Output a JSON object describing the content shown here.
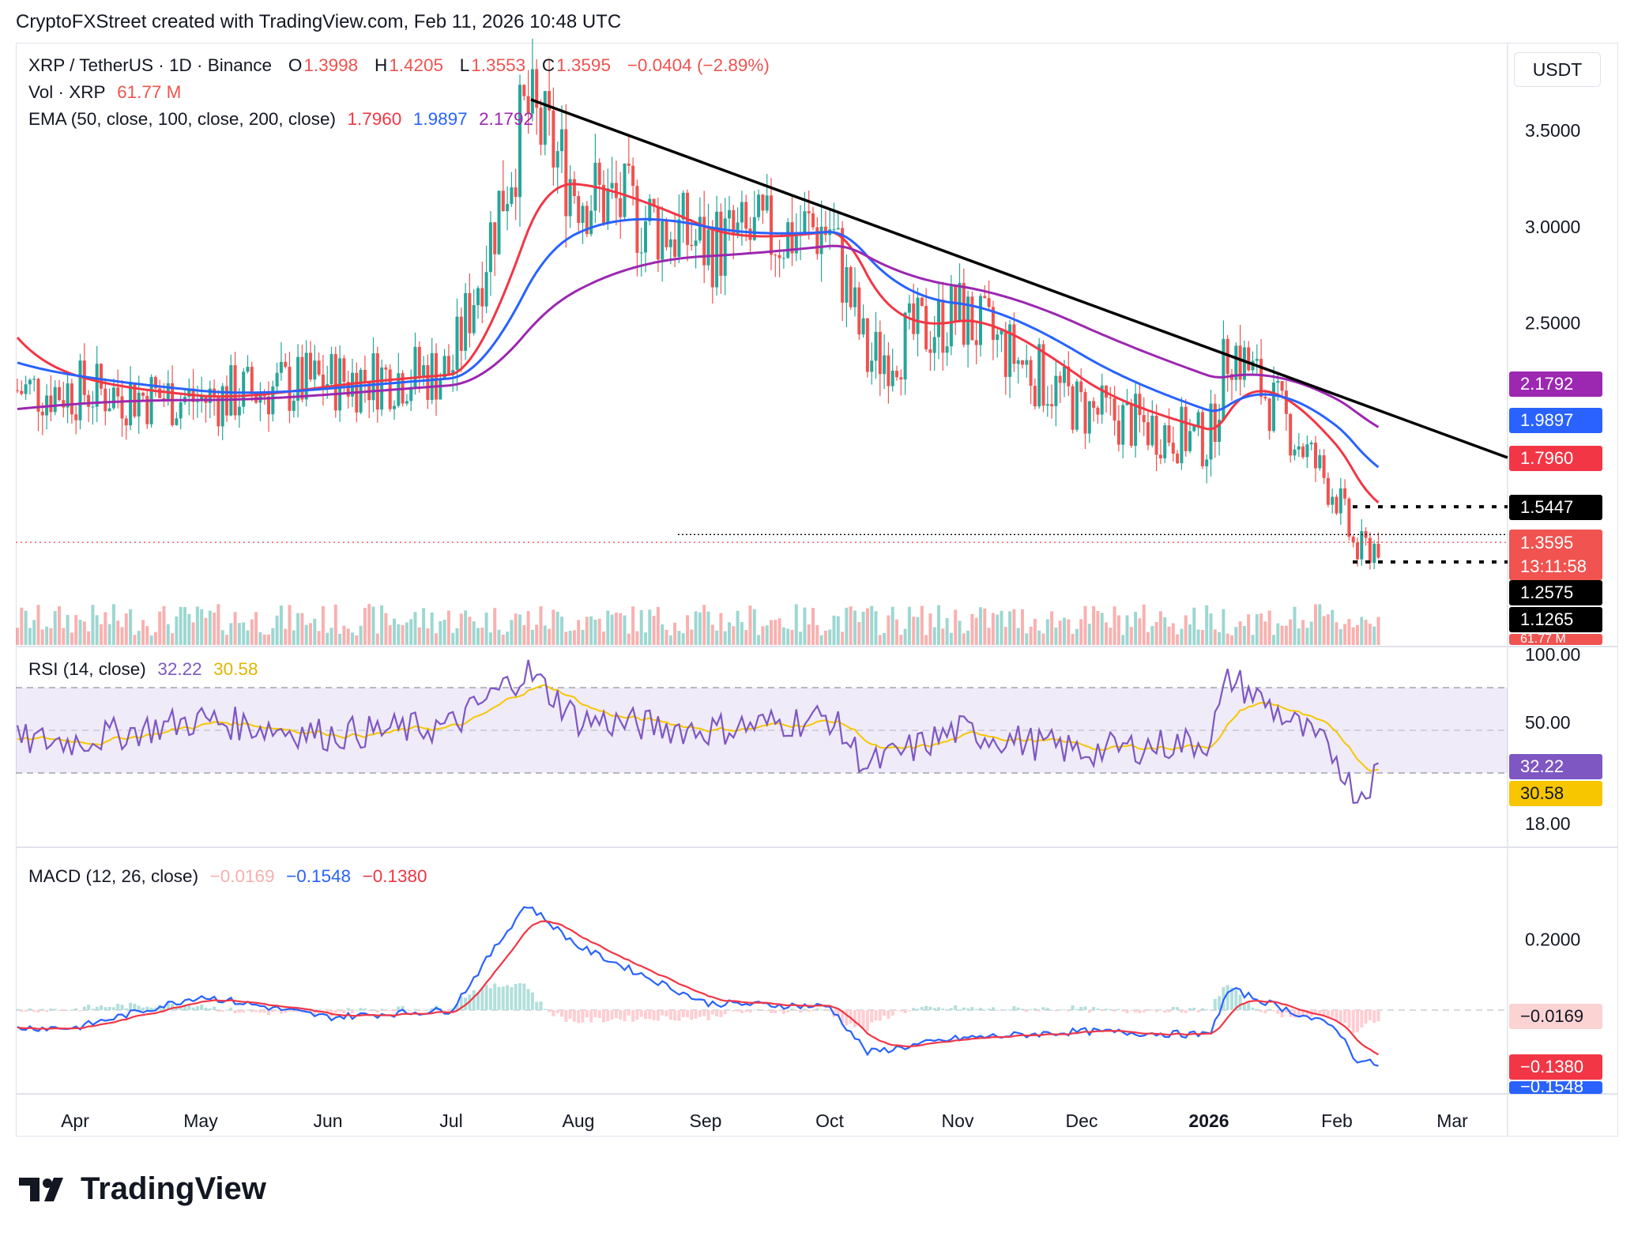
{
  "header": {
    "text": "CryptoFXStreet created with TradingView.com, Feb 11, 2026 10:48 UTC"
  },
  "legend": {
    "symbol": "XRP / TetherUS · 1D · Binance",
    "o_label": "O",
    "o": "1.3998",
    "h_label": "H",
    "h": "1.4205",
    "l_label": "L",
    "l": "1.3553",
    "c_label": "C",
    "c": "1.3595",
    "change": "−0.0404 (−2.89%)",
    "vol_label": "Vol · XRP",
    "vol": "61.77 M",
    "ema_label": "EMA (50, close, 100, close, 200, close)",
    "ema50": "1.7960",
    "ema100": "1.9897",
    "ema200": "2.1792",
    "rsi_label": "RSI (14, close)",
    "rsi": "32.22",
    "rsi_ma": "30.58",
    "macd_label": "MACD (12, 26, close)",
    "macd_hist": "−0.0169",
    "macd": "−0.1548",
    "macd_signal": "−0.1380"
  },
  "currency_button": "USDT",
  "price_labels": {
    "ema200": "2.1792",
    "ema100": "1.9897",
    "ema50": "1.7960",
    "level_upper": "1.5447",
    "current": "1.3595",
    "countdown": "13:11:58",
    "level_lower": "1.2575",
    "level_low": "1.1265",
    "volume": "61.77 M"
  },
  "rsi_labels": {
    "rsi": "32.22",
    "rsi_ma": "30.58"
  },
  "macd_labels": {
    "hist": "−0.0169",
    "signal": "−0.1380",
    "macd": "−0.1548"
  },
  "colors": {
    "up": "#26a69a",
    "down": "#ef5350",
    "ema50": "#f23645",
    "ema100": "#2962ff",
    "ema200": "#9c27b0",
    "rsi": "#7e57c2",
    "rsi_ma": "#f7c600",
    "trendline": "#000000"
  },
  "chart_data": [
    {
      "type": "candlestick",
      "title": "XRP / TetherUS · 1D · Binance",
      "x_ticks": [
        "Apr",
        "May",
        "Jun",
        "Jul",
        "Aug",
        "Sep",
        "Oct",
        "Nov",
        "Dec",
        "2026",
        "Feb",
        "Mar"
      ],
      "y_ticks": [
        "3.5000",
        "3.0000",
        "2.5000"
      ],
      "ylim": [
        1.05,
        3.75
      ],
      "key_points": {
        "x": [
          "Apr",
          "May",
          "Jun",
          "Jul",
          "Jul-20",
          "Aug",
          "Sep",
          "Oct",
          "Oct-10",
          "Nov",
          "Dec",
          "2026",
          "Jan-06",
          "Feb",
          "Feb-06",
          "Feb-11"
        ],
        "close": [
          2.15,
          2.1,
          2.2,
          2.25,
          3.6,
          3.2,
          2.9,
          3.0,
          2.3,
          2.55,
          2.05,
          1.88,
          2.4,
          1.6,
          1.3,
          1.3595
        ]
      },
      "ema": [
        {
          "name": "EMA 50",
          "value_last": 1.796
        },
        {
          "name": "EMA 100",
          "value_last": 1.9897
        },
        {
          "name": "EMA 200",
          "value_last": 2.1792
        }
      ],
      "horizontal_levels": [
        1.5447,
        1.2575,
        1.1265
      ],
      "trendline": {
        "from": [
          "Jul-20",
          3.66
        ],
        "to": [
          "Mar",
          1.8
        ]
      }
    },
    {
      "type": "line",
      "title": "RSI (14, close)",
      "y_ticks": [
        "100.00",
        "50.00",
        "18.00"
      ],
      "bands": [
        70,
        30
      ],
      "last": {
        "rsi": 32.22,
        "ma": 30.58
      },
      "key_points": {
        "x": [
          "Apr",
          "May",
          "Jun",
          "Jul",
          "Jul-20",
          "Aug",
          "Sep",
          "Oct",
          "Oct-10",
          "Nov",
          "Dec",
          "2026",
          "Jan-06",
          "Feb",
          "Feb-06",
          "Feb-11"
        ],
        "rsi": [
          45,
          55,
          48,
          52,
          78,
          55,
          50,
          56,
          33,
          50,
          40,
          45,
          75,
          38,
          18,
          32
        ]
      }
    },
    {
      "type": "line",
      "title": "MACD (12, 26, close)",
      "y_ticks": [
        "0.2000"
      ],
      "last": {
        "hist": -0.0169,
        "macd": -0.1548,
        "signal": -0.138
      },
      "key_points": {
        "x": [
          "Apr",
          "May",
          "Jun",
          "Jul",
          "Jul-20",
          "Aug",
          "Sep",
          "Oct",
          "Oct-10",
          "Nov",
          "Dec",
          "2026",
          "Jan-06",
          "Feb",
          "Feb-06",
          "Feb-11"
        ],
        "macd": [
          -0.05,
          0.04,
          -0.02,
          0.0,
          0.3,
          0.18,
          0.02,
          0.01,
          -0.12,
          -0.08,
          -0.06,
          -0.07,
          0.06,
          -0.05,
          -0.14,
          -0.1548
        ]
      }
    }
  ],
  "footer": {
    "brand": "TradingView"
  }
}
